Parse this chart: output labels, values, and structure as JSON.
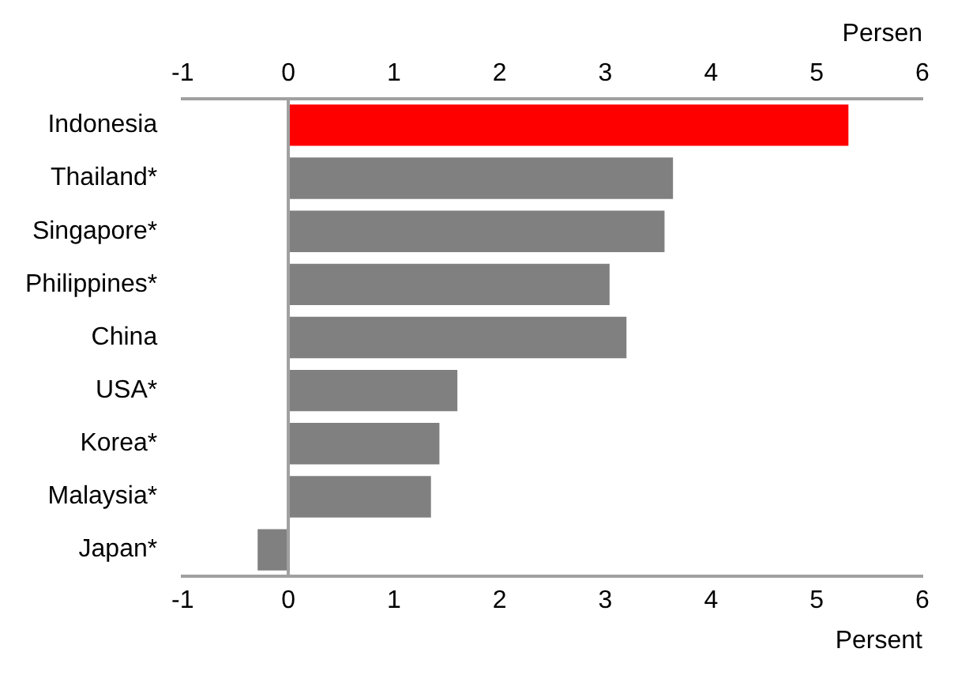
{
  "chart_data": {
    "type": "bar",
    "orientation": "horizontal",
    "categories": [
      "Indonesia",
      "Thailand*",
      "Singapore*",
      "Philippines*",
      "China",
      "USA*",
      "Korea*",
      "Malaysia*",
      "Japan*"
    ],
    "values": [
      5.3,
      3.64,
      3.56,
      3.04,
      3.2,
      1.6,
      1.43,
      1.35,
      -0.29
    ],
    "colors": [
      "#ff0000",
      "#808080",
      "#808080",
      "#808080",
      "#808080",
      "#808080",
      "#808080",
      "#808080",
      "#808080"
    ],
    "xlim": [
      -1,
      6
    ],
    "xticks": [
      -1,
      0,
      1,
      2,
      3,
      4,
      5,
      6
    ],
    "xlabel": "Persent",
    "x2lim": [
      -1,
      6
    ],
    "x2ticks": [
      -1,
      0,
      1,
      2,
      3,
      4,
      5,
      6
    ],
    "x2label": "Persen",
    "ref_lines": [
      {
        "axis": "x",
        "value": 0,
        "color": "#a0a0a0"
      }
    ],
    "grid": false,
    "legend": false
  }
}
